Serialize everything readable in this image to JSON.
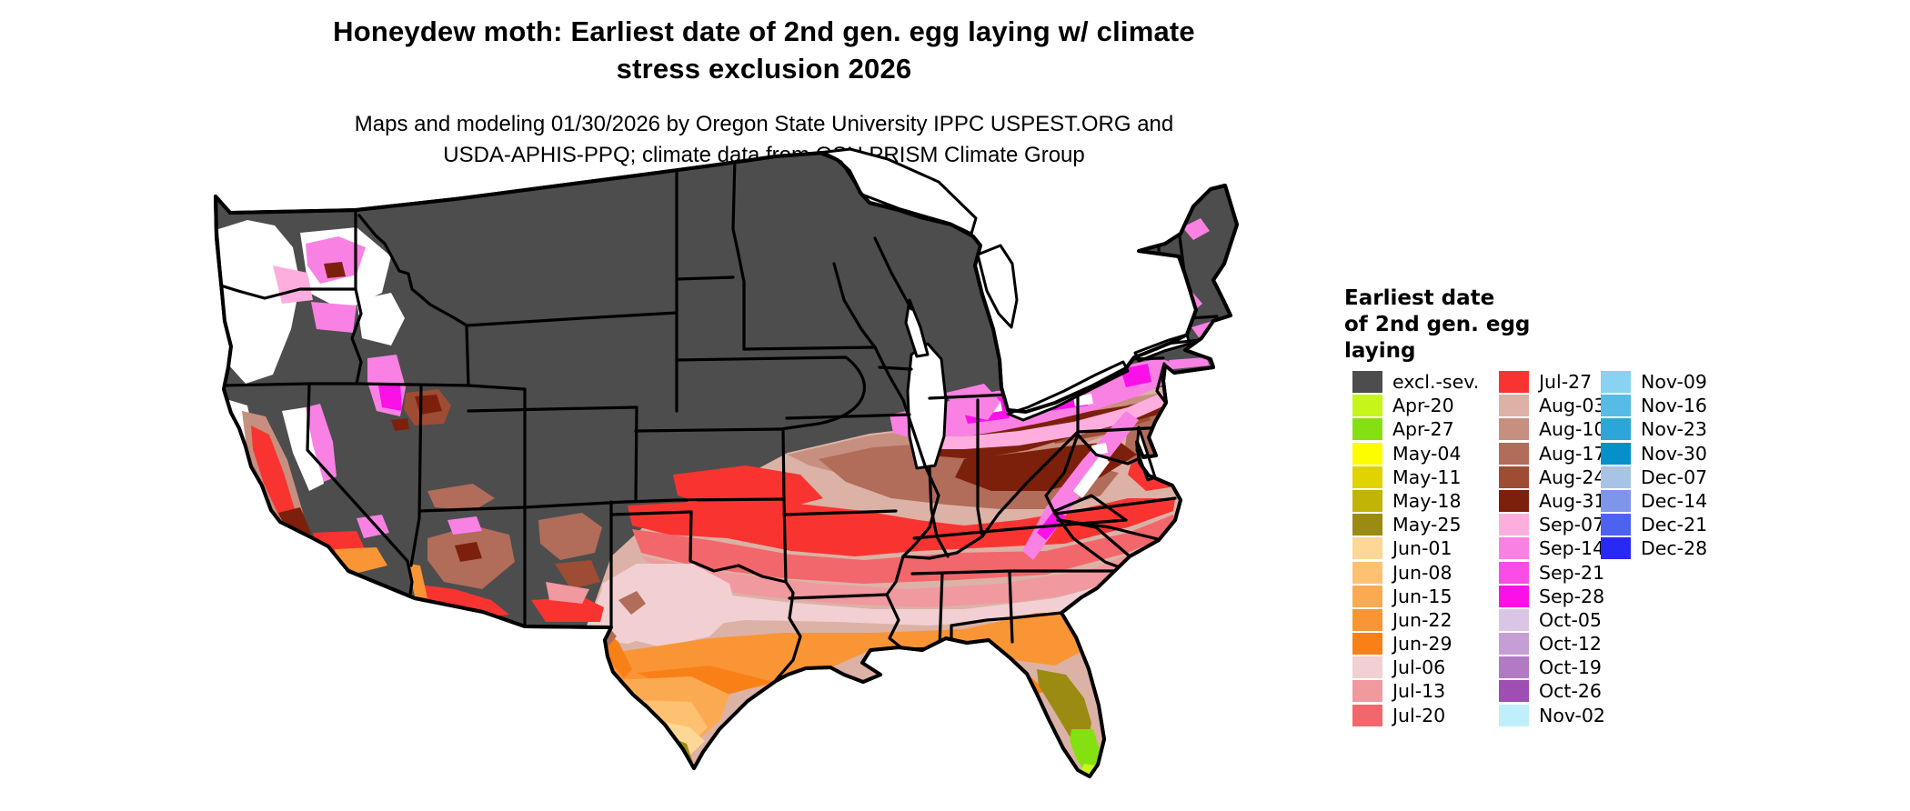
{
  "header": {
    "title_line1": "Honeydew moth: Earliest date of 2nd gen. egg laying w/ climate",
    "title_line2": "stress exclusion 2026",
    "subtitle_line1": "Maps and modeling 01/30/2026 by Oregon State University IPPC USPEST.ORG and",
    "subtitle_line2": "USDA-APHIS-PPQ; climate data from OSU PRISM Climate Group"
  },
  "legend": {
    "title_lines": [
      "Earliest date",
      "of 2nd gen. egg",
      "laying"
    ],
    "columns": [
      [
        {
          "label": "excl.-sev.",
          "color": "#4d4d4d"
        },
        {
          "label": "Apr-20",
          "color": "#c6f51a"
        },
        {
          "label": "Apr-27",
          "color": "#85e012"
        },
        {
          "label": "May-04",
          "color": "#fdfd00"
        },
        {
          "label": "May-11",
          "color": "#e0d300"
        },
        {
          "label": "May-18",
          "color": "#c2b307"
        },
        {
          "label": "May-25",
          "color": "#9b8b12"
        },
        {
          "label": "Jun-01",
          "color": "#fcd795"
        },
        {
          "label": "Jun-08",
          "color": "#fdc171"
        },
        {
          "label": "Jun-15",
          "color": "#fbaa51"
        },
        {
          "label": "Jun-22",
          "color": "#fa9535"
        },
        {
          "label": "Jun-29",
          "color": "#f98017"
        },
        {
          "label": "Jul-06",
          "color": "#f2cfd2"
        },
        {
          "label": "Jul-13",
          "color": "#f0999e"
        },
        {
          "label": "Jul-20",
          "color": "#f2676c"
        }
      ],
      [
        {
          "label": "Jul-27",
          "color": "#f93430"
        },
        {
          "label": "Aug-03",
          "color": "#dcb2a6"
        },
        {
          "label": "Aug-10",
          "color": "#c78f80"
        },
        {
          "label": "Aug-17",
          "color": "#b16c5a"
        },
        {
          "label": "Aug-24",
          "color": "#9f4c35"
        },
        {
          "label": "Aug-31",
          "color": "#7d200b"
        },
        {
          "label": "Sep-07",
          "color": "#feaede"
        },
        {
          "label": "Sep-14",
          "color": "#f981e4"
        },
        {
          "label": "Sep-21",
          "color": "#fa4ce6"
        },
        {
          "label": "Sep-28",
          "color": "#fb10e8"
        },
        {
          "label": "Oct-05",
          "color": "#dbc5e5"
        },
        {
          "label": "Oct-12",
          "color": "#c69ed6"
        },
        {
          "label": "Oct-19",
          "color": "#b279c5"
        },
        {
          "label": "Oct-26",
          "color": "#9f4eb3"
        },
        {
          "label": "Nov-02",
          "color": "#beeffb"
        }
      ],
      [
        {
          "label": "Nov-09",
          "color": "#89d2f2"
        },
        {
          "label": "Nov-16",
          "color": "#56bce5"
        },
        {
          "label": "Nov-23",
          "color": "#2ca6d9"
        },
        {
          "label": "Nov-30",
          "color": "#0590ca"
        },
        {
          "label": "Dec-07",
          "color": "#a7c4e5"
        },
        {
          "label": "Dec-14",
          "color": "#7e96ea"
        },
        {
          "label": "Dec-21",
          "color": "#4d63ef"
        },
        {
          "label": "Dec-28",
          "color": "#2829f3"
        }
      ]
    ]
  },
  "map": {
    "background_color": "#ffffff",
    "excluded_fill": "#4d4d4d",
    "state_border_color": "#000000",
    "water_fill": "#ffffff"
  }
}
